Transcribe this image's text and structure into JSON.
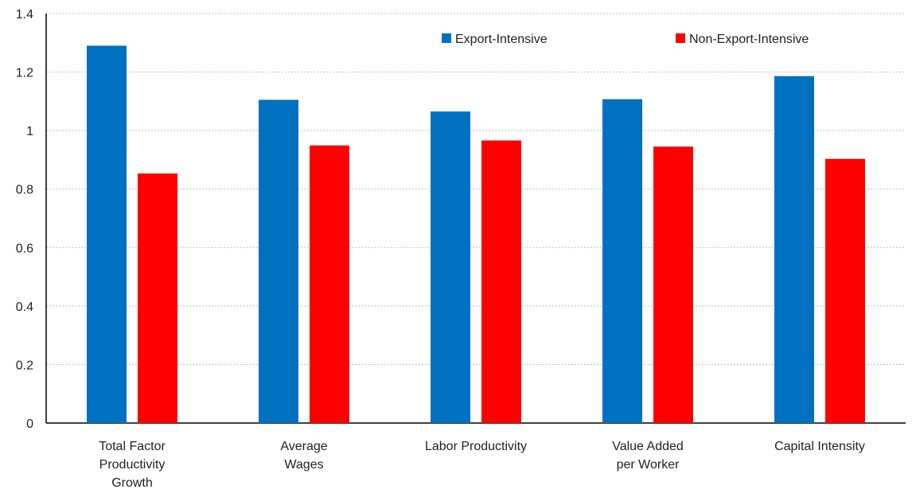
{
  "chart_data": {
    "type": "bar",
    "title": "",
    "xlabel": "",
    "ylabel": "",
    "ylim": [
      0,
      1.4
    ],
    "yticks": [
      0,
      0.2,
      0.4,
      0.6,
      0.8,
      1,
      1.2,
      1.4
    ],
    "ytick_labels": [
      "0",
      "0.2",
      "0.4",
      "0.6",
      "0.8",
      "1",
      "1.2",
      "1.4"
    ],
    "grid": true,
    "legend_position": "top-right",
    "categories": [
      "Total Factor Productivity Growth",
      "Average Wages",
      "Labor Productivity",
      "Value Added per Worker",
      "Capital Intensity"
    ],
    "category_label_lines": [
      [
        "Total Factor",
        "Productivity",
        "Growth"
      ],
      [
        "Average",
        "Wages"
      ],
      [
        "Labor Productivity"
      ],
      [
        "Value Added",
        "per Worker"
      ],
      [
        "Capital Intensity"
      ]
    ],
    "series": [
      {
        "name": "Export-Intensive",
        "color": "#0070C0",
        "values": [
          1.29,
          1.105,
          1.065,
          1.107,
          1.186
        ]
      },
      {
        "name": "Non-Export-Intensive",
        "color": "#FF0000",
        "values": [
          0.853,
          0.949,
          0.966,
          0.945,
          0.903
        ]
      }
    ]
  }
}
